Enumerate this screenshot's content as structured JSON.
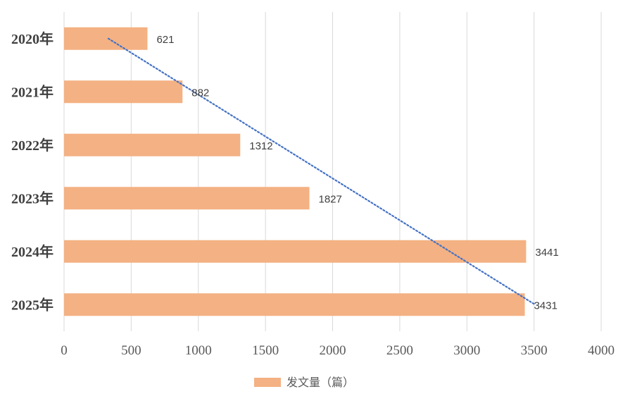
{
  "chart_data": {
    "type": "bar",
    "orientation": "horizontal",
    "categories": [
      "2020年",
      "2021年",
      "2022年",
      "2023年",
      "2024年",
      "2025年"
    ],
    "series": [
      {
        "name": "发文量（篇）",
        "values": [
          621,
          882,
          1312,
          1827,
          3441,
          3431
        ],
        "color": "#f4b183"
      }
    ],
    "xlim": [
      0,
      4000
    ],
    "xticks": [
      0,
      500,
      1000,
      1500,
      2000,
      2500,
      3000,
      3500,
      4000
    ],
    "grid": true,
    "gridColor": "#d9d9d9",
    "trendline": {
      "type": "linear",
      "style": "dotted",
      "color": "#4472c4"
    },
    "legend": "bottom"
  }
}
